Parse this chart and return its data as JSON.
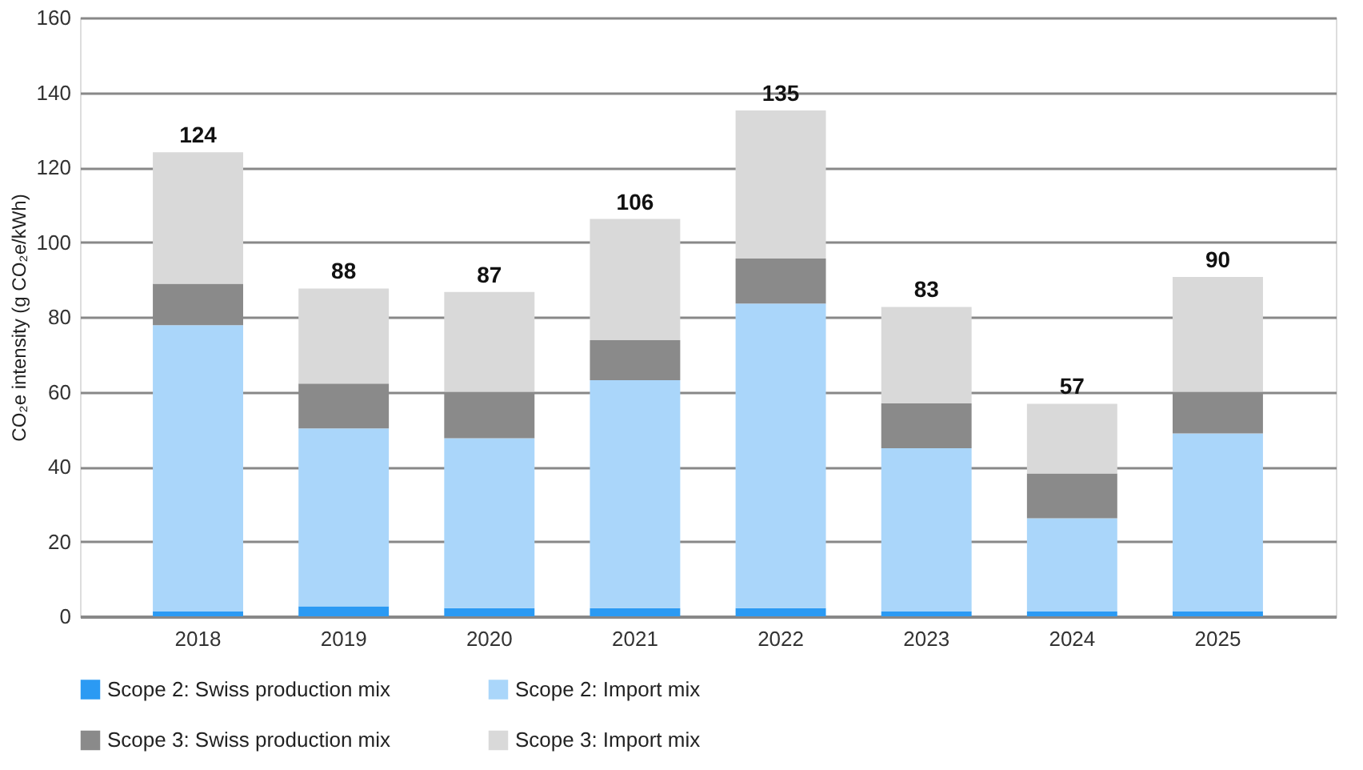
{
  "chart_data": {
    "type": "bar",
    "stacked": true,
    "ylabel": "CO₂e intensity (g CO₂e/kWh)",
    "categories": [
      "2018",
      "2019",
      "2020",
      "2021",
      "2022",
      "2023",
      "2024",
      "2025"
    ],
    "series": [
      {
        "name": "Scope 2: Swiss production mix",
        "color": "#2b9af3",
        "values": [
          1.3,
          2.7,
          2.2,
          2.2,
          2.2,
          1.3,
          1.3,
          1.3
        ]
      },
      {
        "name": "Scope 2: Import mix",
        "color": "#aad6fa",
        "values": [
          76.5,
          47.5,
          45.4,
          60.9,
          81.4,
          43.6,
          24.9,
          47.6
        ]
      },
      {
        "name": "Scope 3: Swiss production mix",
        "color": "#8a8a8a",
        "values": [
          11.1,
          12.0,
          12.4,
          10.7,
          12.0,
          12.0,
          12.0,
          11.1
        ]
      },
      {
        "name": "Scope 3: Import mix",
        "color": "#d9d9d9",
        "values": [
          35.1,
          25.4,
          26.7,
          32.4,
          39.6,
          25.8,
          18.6,
          30.7
        ]
      }
    ],
    "totals": [
      "124",
      "88",
      "87",
      "106",
      "135",
      "83",
      "57",
      "90"
    ],
    "ylim": [
      0,
      160
    ],
    "yticks": [
      0,
      20,
      40,
      60,
      80,
      100,
      120,
      140,
      160
    ],
    "grid": "y",
    "legend": "bottom"
  }
}
